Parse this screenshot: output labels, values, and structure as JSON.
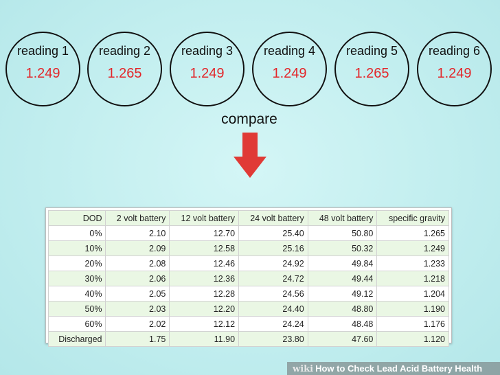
{
  "readings": [
    {
      "label": "reading 1",
      "value": "1.249"
    },
    {
      "label": "reading 2",
      "value": "1.265"
    },
    {
      "label": "reading 3",
      "value": "1.249"
    },
    {
      "label": "reading 4",
      "value": "1.249"
    },
    {
      "label": "reading 5",
      "value": "1.265"
    },
    {
      "label": "reading 6",
      "value": "1.249"
    }
  ],
  "compare_label": "compare",
  "table": {
    "headers": [
      "DOD",
      "2 volt battery",
      "12 volt battery",
      "24 volt battery",
      "48 volt battery",
      "specific gravity"
    ],
    "rows": [
      [
        "0%",
        "2.10",
        "12.70",
        "25.40",
        "50.80",
        "1.265"
      ],
      [
        "10%",
        "2.09",
        "12.58",
        "25.16",
        "50.32",
        "1.249"
      ],
      [
        "20%",
        "2.08",
        "12.46",
        "24.92",
        "49.84",
        "1.233"
      ],
      [
        "30%",
        "2.06",
        "12.36",
        "24.72",
        "49.44",
        "1.218"
      ],
      [
        "40%",
        "2.05",
        "12.28",
        "24.56",
        "49.12",
        "1.204"
      ],
      [
        "50%",
        "2.03",
        "12.20",
        "24.40",
        "48.80",
        "1.190"
      ],
      [
        "60%",
        "2.02",
        "12.12",
        "24.24",
        "48.48",
        "1.176"
      ],
      [
        "Discharged",
        "1.75",
        "11.90",
        "23.80",
        "47.60",
        "1.120"
      ]
    ]
  },
  "watermark": {
    "logo": "wiki",
    "title": "How to Check Lead Acid Battery Health"
  },
  "colors": {
    "reading_value": "#e3262a",
    "arrow": "#e03a36",
    "row_stripe": "#eaf7e4"
  }
}
